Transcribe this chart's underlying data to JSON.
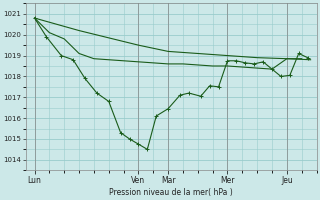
{
  "background_color": "#cce8e8",
  "grid_color": "#99cccc",
  "line_color": "#1a5c1a",
  "xlabel": "Pression niveau de la mer( hPa )",
  "ylim": [
    1013.5,
    1021.5
  ],
  "yticks": [
    1014,
    1015,
    1016,
    1017,
    1018,
    1019,
    1020,
    1021
  ],
  "day_labels": [
    "Lun",
    "Ven",
    "Mar",
    "Mer",
    "Jeu"
  ],
  "day_positions": [
    0.0,
    3.5,
    4.5,
    6.5,
    8.5
  ],
  "xlim": [
    -0.3,
    9.5
  ],
  "series1_x": [
    0.0,
    1.5,
    3.5,
    4.5,
    5.5,
    6.5,
    7.5,
    8.5,
    9.3
  ],
  "series1_y": [
    1020.8,
    1020.2,
    1019.5,
    1019.2,
    1019.1,
    1019.0,
    1018.9,
    1018.85,
    1018.8
  ],
  "series2_x": [
    0.0,
    0.4,
    0.9,
    1.3,
    1.7,
    2.1,
    2.5,
    2.9,
    3.2,
    3.5,
    3.8,
    4.1,
    4.5,
    4.9,
    5.2,
    5.6,
    5.9,
    6.2,
    6.5,
    6.8,
    7.1,
    7.4,
    7.7,
    8.0,
    8.3,
    8.6,
    8.9,
    9.2
  ],
  "series2_y": [
    1020.8,
    1019.9,
    1019.0,
    1018.8,
    1017.9,
    1017.2,
    1016.8,
    1015.3,
    1015.0,
    1014.75,
    1014.5,
    1016.1,
    1016.45,
    1017.1,
    1017.2,
    1017.05,
    1017.55,
    1017.5,
    1018.75,
    1018.75,
    1018.65,
    1018.6,
    1018.7,
    1018.35,
    1018.0,
    1018.05,
    1019.1,
    1018.9
  ],
  "series3_x": [
    0.0,
    0.5,
    1.0,
    1.5,
    2.0,
    2.5,
    3.0,
    3.5,
    4.0,
    4.5,
    5.0,
    5.5,
    6.0,
    6.5,
    7.0,
    7.5,
    8.0,
    8.5,
    9.0
  ],
  "series3_y": [
    1020.8,
    1020.1,
    1019.8,
    1019.1,
    1018.85,
    1018.8,
    1018.75,
    1018.7,
    1018.65,
    1018.6,
    1018.6,
    1018.55,
    1018.5,
    1018.5,
    1018.45,
    1018.4,
    1018.35,
    1018.85,
    1018.85
  ]
}
